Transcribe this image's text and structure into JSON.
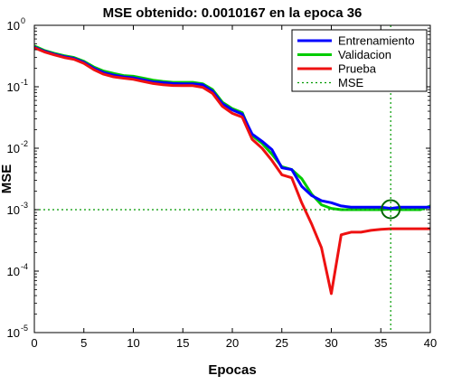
{
  "chart_data": {
    "type": "line",
    "title": "MSE obtenido: 0.0010167 en la epoca 36",
    "xlabel": "Epocas",
    "ylabel": "MSE",
    "xlim": [
      0,
      40
    ],
    "ylim": [
      1e-05,
      1
    ],
    "yscale": "log",
    "x_ticks": [
      "0",
      "5",
      "10",
      "15",
      "20",
      "25",
      "30",
      "35",
      "40"
    ],
    "y_tick_base": "10",
    "y_tick_exponents": [
      "0",
      "-1",
      "-2",
      "-3",
      "-4",
      "-5"
    ],
    "legend_position": "top-right",
    "best_epoch": 36,
    "best_mse": 0.0010167,
    "goal_mse": 0.001,
    "x": [
      0,
      1,
      2,
      3,
      4,
      5,
      6,
      7,
      8,
      9,
      10,
      11,
      12,
      13,
      14,
      15,
      16,
      17,
      18,
      19,
      20,
      21,
      22,
      23,
      24,
      25,
      26,
      27,
      28,
      29,
      30,
      31,
      32,
      33,
      34,
      35,
      36,
      37,
      38,
      39,
      40
    ],
    "series": [
      {
        "name": "Entrenamiento",
        "color": "#0000ff",
        "values": [
          0.44,
          0.38,
          0.34,
          0.31,
          0.29,
          0.25,
          0.2,
          0.17,
          0.155,
          0.145,
          0.14,
          0.13,
          0.12,
          0.117,
          0.113,
          0.112,
          0.112,
          0.108,
          0.085,
          0.053,
          0.042,
          0.036,
          0.017,
          0.013,
          0.0095,
          0.0048,
          0.0045,
          0.0024,
          0.0017,
          0.0014,
          0.0013,
          0.00115,
          0.0011,
          0.0011,
          0.0011,
          0.0011,
          0.00105,
          0.0011,
          0.0011,
          0.0011,
          0.0011
        ]
      },
      {
        "name": "Validacion",
        "color": "#00cc00",
        "values": [
          0.46,
          0.39,
          0.35,
          0.32,
          0.3,
          0.26,
          0.21,
          0.18,
          0.165,
          0.152,
          0.148,
          0.138,
          0.128,
          0.122,
          0.118,
          0.118,
          0.118,
          0.112,
          0.09,
          0.056,
          0.044,
          0.038,
          0.016,
          0.012,
          0.008,
          0.005,
          0.0045,
          0.0032,
          0.0018,
          0.0012,
          0.00105,
          0.001,
          0.001,
          0.001,
          0.001,
          0.001,
          0.00102,
          0.001,
          0.001,
          0.001,
          0.00115
        ]
      },
      {
        "name": "Prueba",
        "color": "#ee1111",
        "values": [
          0.43,
          0.37,
          0.33,
          0.3,
          0.28,
          0.24,
          0.19,
          0.16,
          0.145,
          0.138,
          0.132,
          0.122,
          0.113,
          0.108,
          0.105,
          0.104,
          0.104,
          0.098,
          0.078,
          0.048,
          0.037,
          0.032,
          0.014,
          0.01,
          0.0063,
          0.0037,
          0.0033,
          0.0013,
          0.00059,
          0.00024,
          4.3e-05,
          0.00039,
          0.00043,
          0.00043,
          0.00046,
          0.00048,
          0.00049,
          0.00049,
          0.00049,
          0.00049,
          0.00049
        ]
      }
    ],
    "reference_label": "MSE",
    "reference_color": "#009900"
  }
}
